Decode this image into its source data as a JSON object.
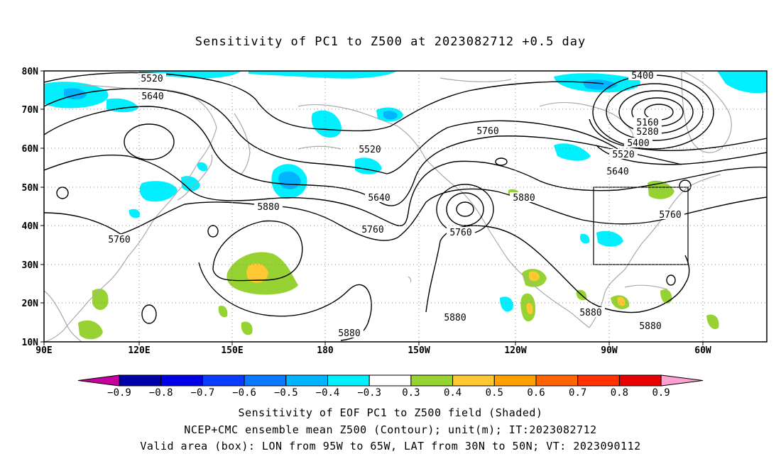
{
  "title": "Sensitivity of PC1 to Z500 at 2023082712 +0.5 day",
  "axes": {
    "lat_ticks": [
      "80N",
      "70N",
      "60N",
      "50N",
      "40N",
      "30N",
      "20N",
      "10N"
    ],
    "lon_ticks": [
      "90E",
      "120E",
      "150E",
      "180",
      "150W",
      "120W",
      "90W",
      "60W"
    ]
  },
  "contour_labels": [
    {
      "text": "5520"
    },
    {
      "text": "5640"
    },
    {
      "text": "5520"
    },
    {
      "text": "5640"
    },
    {
      "text": "5760"
    },
    {
      "text": "5880"
    },
    {
      "text": "5760"
    },
    {
      "text": "5760"
    },
    {
      "text": "5880"
    },
    {
      "text": "5880"
    },
    {
      "text": "5760"
    },
    {
      "text": "5880"
    },
    {
      "text": "5880"
    },
    {
      "text": "5760"
    },
    {
      "text": "5880"
    },
    {
      "text": "5400"
    },
    {
      "text": "5160"
    },
    {
      "text": "5280"
    },
    {
      "text": "5400"
    },
    {
      "text": "5520"
    },
    {
      "text": "5640"
    },
    {
      "text": "5760"
    }
  ],
  "colorbar": {
    "labels": [
      "−0.9",
      "−0.8",
      "−0.7",
      "−0.6",
      "−0.5",
      "−0.4",
      "−0.3",
      "0.3",
      "0.4",
      "0.5",
      "0.6",
      "0.7",
      "0.8",
      "0.9"
    ],
    "colors": [
      "#0000a8",
      "#0000e8",
      "#0a3cff",
      "#0a78ff",
      "#00b4ff",
      "#00f0ff",
      "#ffffff",
      "#96d232",
      "#ffc832",
      "#ffa000",
      "#ff6400",
      "#ff3200",
      "#e60000"
    ],
    "low_end_color": "#c800a0",
    "high_end_color": "#ffa0d2"
  },
  "captions": [
    "Sensitivity of EOF PC1 to Z500 field (Shaded)",
    "NCEP+CMC ensemble mean Z500 (Contour); unit(m); IT:2023082712",
    "Valid area (box): LON from 95W to 65W, LAT from 30N to 50N; VT: 2023090112"
  ],
  "colors": {
    "coast": "#aaaaaa",
    "grid": "#888888",
    "negative_shade": "#00f0ff",
    "negative_strong": "#00b4ff",
    "positive_shade": "#96d232",
    "positive_strong": "#ffc832"
  }
}
